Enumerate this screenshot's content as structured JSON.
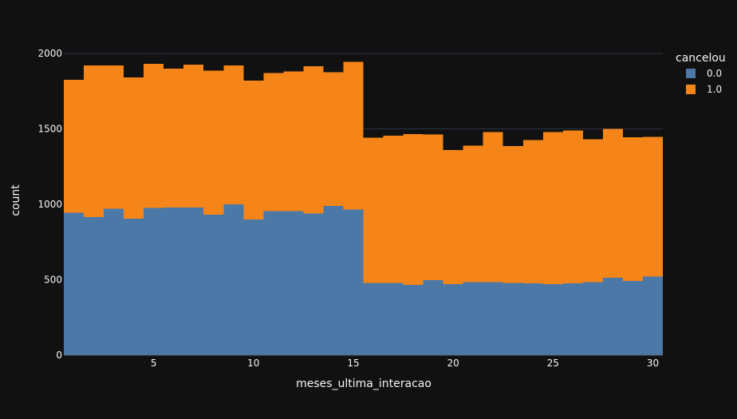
{
  "chart_data": {
    "type": "bar",
    "barmode": "stack",
    "xlabel": "meses_ultima_interacao",
    "ylabel": "count",
    "x": [
      1,
      2,
      3,
      4,
      5,
      6,
      7,
      8,
      9,
      10,
      11,
      12,
      13,
      14,
      15,
      16,
      17,
      18,
      19,
      20,
      21,
      22,
      23,
      24,
      25,
      26,
      27,
      28,
      29,
      30
    ],
    "x_ticks": [
      5,
      10,
      15,
      20,
      25,
      30
    ],
    "y_ticks": [
      0,
      500,
      1000,
      1500,
      2000
    ],
    "xlim": [
      0.5,
      30.5
    ],
    "ylim": [
      0,
      2000
    ],
    "grid": true,
    "legend": {
      "title": "cancelou",
      "position": "top-right"
    },
    "series": [
      {
        "name": "0.0",
        "color": "#4c78a8",
        "values": [
          945,
          915,
          970,
          905,
          975,
          980,
          980,
          930,
          1000,
          900,
          955,
          955,
          940,
          990,
          965,
          478,
          478,
          465,
          498,
          470,
          485,
          485,
          480,
          475,
          470,
          475,
          485,
          512,
          492,
          522
        ]
      },
      {
        "name": "1.0",
        "color": "#f58518",
        "values": [
          880,
          1005,
          950,
          935,
          955,
          920,
          945,
          955,
          920,
          920,
          915,
          925,
          975,
          885,
          980,
          965,
          977,
          1000,
          965,
          890,
          905,
          995,
          905,
          950,
          1010,
          1015,
          945,
          988,
          953,
          925
        ]
      }
    ]
  }
}
